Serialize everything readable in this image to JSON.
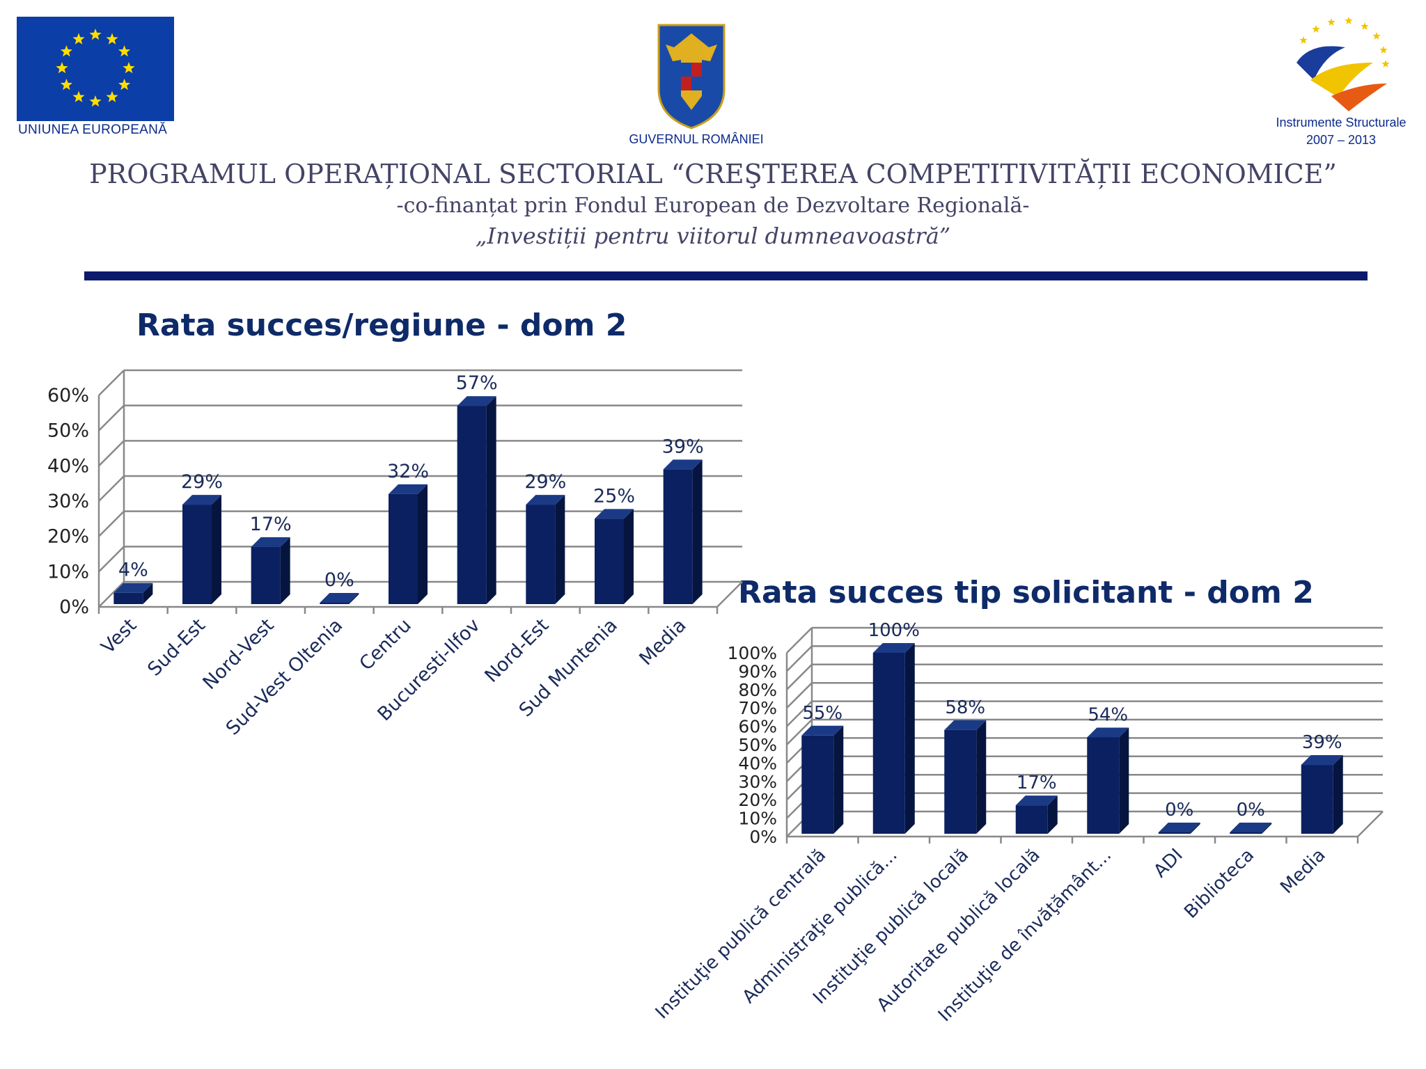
{
  "header": {
    "eu_caption": "UNIUNEA EUROPEANĂ",
    "gov_caption": "GUVERNUL ROMÂNIEI",
    "is_caption_line1": "Instrumente Structurale",
    "is_caption_line2": "2007 – 2013",
    "program_title": "PROGRAMUL OPERAȚIONAL SECTORIAL “CREŞTEREA COMPETITIVITĂȚII ECONOMICE”",
    "program_subtitle": "-co-finanțat prin Fondul European de Dezvoltare Regională-",
    "program_motto": "„Investiții pentru viitorul dumneavoastră”"
  },
  "colors": {
    "bar": "#0a2060",
    "bar_side": "#061540",
    "bar_top": "#1b3a86",
    "grid": "#888888",
    "divider": "#0c1a6b",
    "eu_blue": "#0b3ea6",
    "eu_star": "#ffdd00"
  },
  "chart_data": [
    {
      "type": "bar",
      "title": "Rata succes/regiune - dom 2",
      "categories": [
        "Vest",
        "Sud-Est",
        "Nord-Vest",
        "Sud-Vest Oltenia",
        "Centru",
        "Bucuresti-Ilfov",
        "Nord-Est",
        "Sud Muntenia",
        "Media"
      ],
      "values": [
        4,
        29,
        17,
        0,
        32,
        57,
        29,
        25,
        39
      ],
      "value_labels": [
        "4%",
        "29%",
        "17%",
        "0%",
        "32%",
        "57%",
        "29%",
        "25%",
        "39%"
      ],
      "y_ticks": [
        "0%",
        "10%",
        "20%",
        "30%",
        "40%",
        "50%",
        "60%"
      ],
      "ylim": [
        0,
        60
      ],
      "grid": true,
      "legend": "none",
      "unit": "%"
    },
    {
      "type": "bar",
      "title": "Rata succes tip solicitant - dom 2",
      "categories": [
        "Instituţie publică centrală",
        "Administraţie publică...",
        "Instituţie publică locală",
        "Autoritate publică locală",
        "Instituţie de învăţământ...",
        "ADI",
        "Biblioteca",
        "Media"
      ],
      "values": [
        55,
        100,
        58,
        17,
        54,
        0,
        0,
        39
      ],
      "value_labels": [
        "55%",
        "100%",
        "58%",
        "17%",
        "54%",
        "0%",
        "0%",
        "39%"
      ],
      "y_ticks": [
        "0%",
        "10%",
        "20%",
        "30%",
        "40%",
        "50%",
        "60%",
        "70%",
        "80%",
        "90%",
        "100%"
      ],
      "ylim": [
        0,
        100
      ],
      "grid": true,
      "legend": "none",
      "unit": "%"
    }
  ]
}
